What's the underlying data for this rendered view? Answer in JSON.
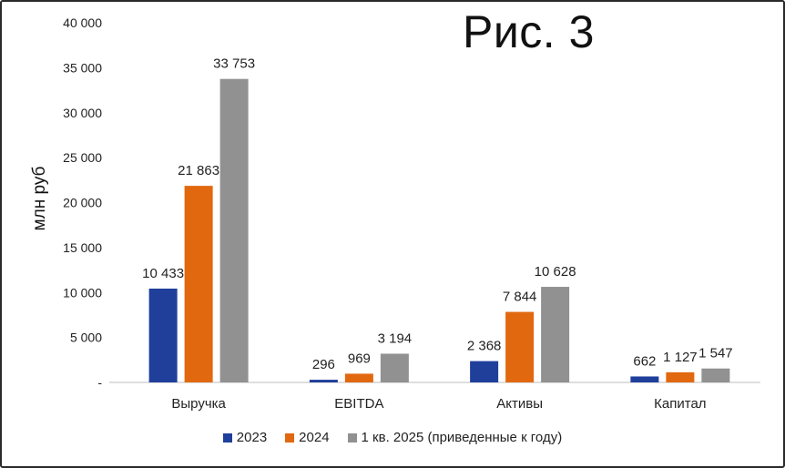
{
  "figure_title": "Рис. 3",
  "chart_data": {
    "type": "bar",
    "title": "",
    "xlabel": "",
    "ylabel": "млн руб",
    "ylim": [
      0,
      40000
    ],
    "yticks": [
      0,
      5000,
      10000,
      15000,
      20000,
      25000,
      30000,
      35000,
      40000
    ],
    "ytick_labels": [
      "-",
      "5 000",
      "10 000",
      "15 000",
      "20 000",
      "25 000",
      "30 000",
      "35 000",
      "40 000"
    ],
    "grid": false,
    "legend_position": "bottom",
    "categories": [
      "Выручка",
      "EBITDA",
      "Активы",
      "Капитал"
    ],
    "series": [
      {
        "name": "2023",
        "color": "#1f3f9b",
        "values": [
          10433,
          296,
          2368,
          662
        ],
        "labels": [
          "10 433",
          "296",
          "2 368",
          "662"
        ]
      },
      {
        "name": "2024",
        "color": "#e2680f",
        "values": [
          21863,
          969,
          7844,
          1127
        ],
        "labels": [
          "21 863",
          "969",
          "7 844",
          "1 127"
        ]
      },
      {
        "name": "1 кв. 2025 (приведенные к году)",
        "color": "#919191",
        "values": [
          33753,
          3194,
          10628,
          1547
        ],
        "labels": [
          "33 753",
          "3 194",
          "10 628",
          "1 547"
        ]
      }
    ]
  }
}
